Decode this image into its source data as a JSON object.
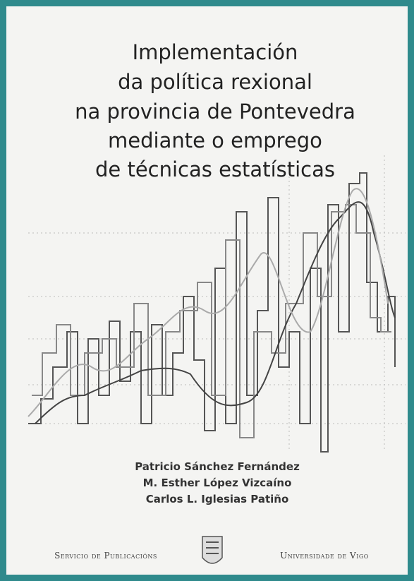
{
  "title": {
    "lines": [
      "Implementación",
      "da política rexional",
      "na provincia de Pontevedra",
      "mediante o emprego",
      "de técnicas estatísticas"
    ]
  },
  "authors": [
    "Patricio Sánchez Fernández",
    "M. Esther López Vizcaíno",
    "Carlos L. Iglesias Patiño"
  ],
  "footer": {
    "left": "Servicio de Publicacións",
    "right": "Universidade de Vigo"
  }
}
